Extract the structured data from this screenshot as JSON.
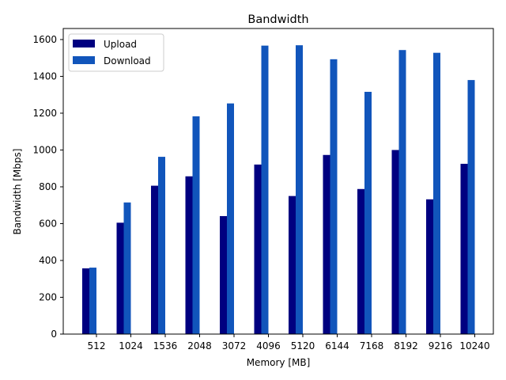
{
  "chart_data": {
    "type": "bar",
    "title": "Bandwidth",
    "xlabel": "Memory [MB]",
    "ylabel": "Bandwidth [Mbps]",
    "categories": [
      "512",
      "1024",
      "1536",
      "2048",
      "3072",
      "4096",
      "5120",
      "6144",
      "7168",
      "8192",
      "9216",
      "10240"
    ],
    "series": [
      {
        "name": "Upload",
        "color": "#000080",
        "values": [
          357,
          605,
          806,
          857,
          641,
          921,
          750,
          973,
          788,
          1000,
          732,
          925
        ]
      },
      {
        "name": "Download",
        "color": "#1155bb",
        "values": [
          361,
          715,
          963,
          1183,
          1253,
          1567,
          1569,
          1493,
          1316,
          1543,
          1528,
          1380
        ]
      }
    ],
    "ylim": [
      0,
      1660
    ],
    "yticks": [
      0,
      200,
      400,
      600,
      800,
      1000,
      1200,
      1400,
      1600
    ],
    "grid": false,
    "legend": "top-left"
  }
}
